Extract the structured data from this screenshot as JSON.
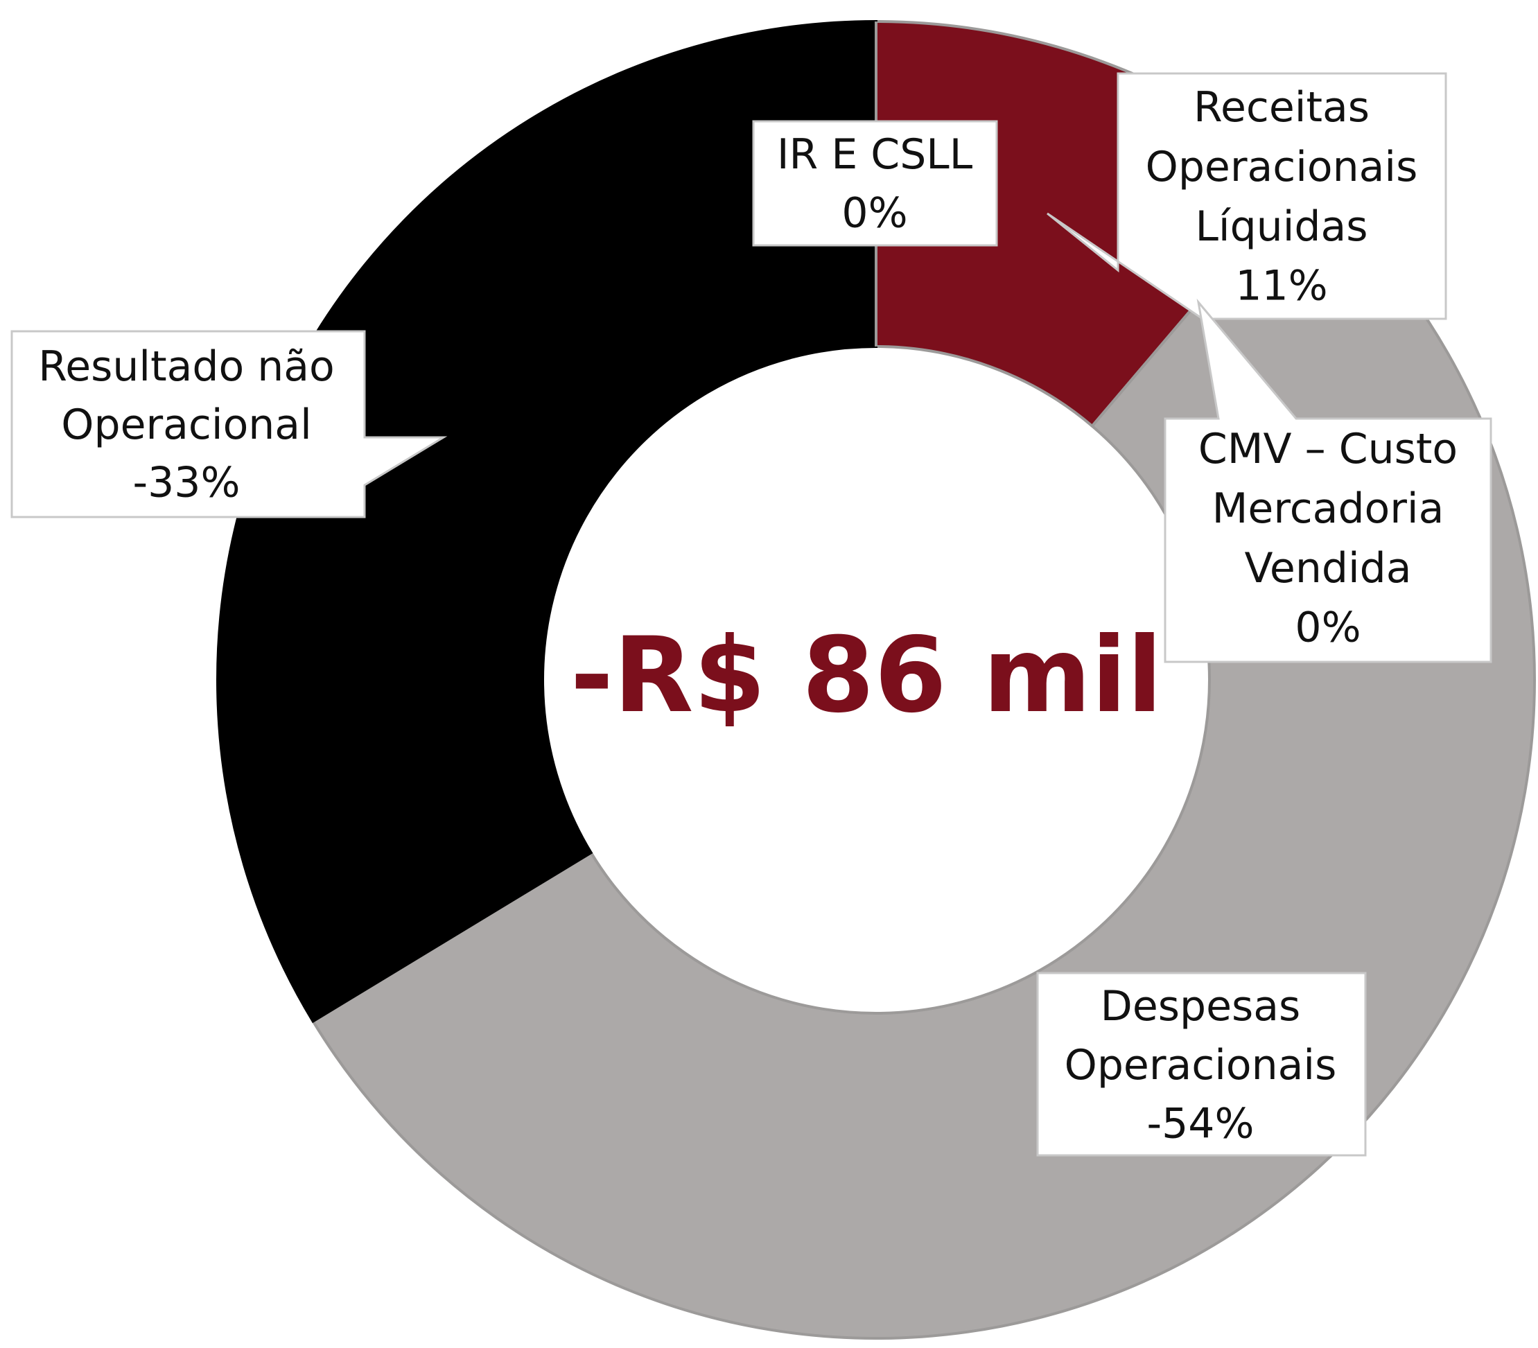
{
  "chart_data": {
    "type": "pie",
    "center_label": "-R$ 86 mil",
    "categories": [
      "Receitas\nOperacionais\nLíquidas",
      "CMV – Custo\nMercadoria\nVendida",
      "Despesas\nOperacionais",
      "Resultado não\nOperacional",
      "IR E CSLL"
    ],
    "values": [
      11,
      0,
      -54,
      -33,
      0
    ],
    "value_labels": [
      "11%",
      "0%",
      "-54%",
      "-33%",
      "0%"
    ],
    "colors": [
      "#7b0f1c",
      "#9c9a99",
      "#aca9a8",
      "#000000",
      "#9c9a99"
    ]
  }
}
